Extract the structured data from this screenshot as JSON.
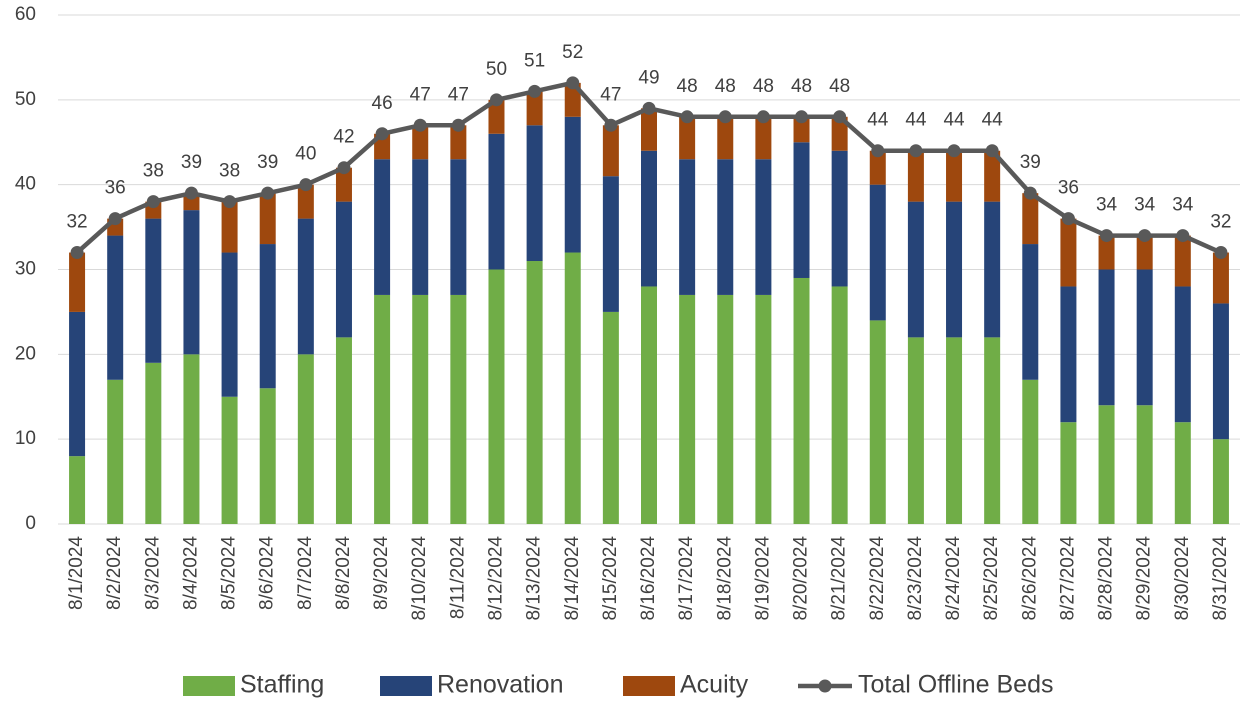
{
  "chart_data": {
    "type": "bar",
    "stacked": true,
    "categories": [
      "8/1/2024",
      "8/2/2024",
      "8/3/2024",
      "8/4/2024",
      "8/5/2024",
      "8/6/2024",
      "8/7/2024",
      "8/8/2024",
      "8/9/2024",
      "8/10/2024",
      "8/11/2024",
      "8/12/2024",
      "8/13/2024",
      "8/14/2024",
      "8/15/2024",
      "8/16/2024",
      "8/17/2024",
      "8/18/2024",
      "8/19/2024",
      "8/20/2024",
      "8/21/2024",
      "8/22/2024",
      "8/23/2024",
      "8/24/2024",
      "8/25/2024",
      "8/26/2024",
      "8/27/2024",
      "8/28/2024",
      "8/29/2024",
      "8/30/2024",
      "8/31/2024"
    ],
    "series": [
      {
        "name": "Staffing",
        "color": "#70ad47",
        "values": [
          8,
          17,
          19,
          20,
          15,
          16,
          20,
          22,
          27,
          27,
          27,
          30,
          31,
          32,
          25,
          28,
          27,
          27,
          27,
          29,
          28,
          24,
          22,
          22,
          22,
          17,
          12,
          14,
          14,
          12,
          10
        ]
      },
      {
        "name": "Renovation",
        "color": "#264478",
        "values": [
          17,
          17,
          17,
          17,
          17,
          17,
          16,
          16,
          16,
          16,
          16,
          16,
          16,
          16,
          16,
          16,
          16,
          16,
          16,
          16,
          16,
          16,
          16,
          16,
          16,
          16,
          16,
          16,
          16,
          16,
          16
        ]
      },
      {
        "name": "Acuity",
        "color": "#9e480e",
        "values": [
          7,
          2,
          2,
          2,
          6,
          6,
          4,
          4,
          3,
          4,
          4,
          4,
          4,
          4,
          6,
          5,
          5,
          5,
          5,
          3,
          4,
          4,
          6,
          6,
          6,
          6,
          8,
          4,
          4,
          6,
          6
        ]
      },
      {
        "name": "Total Offline Beds",
        "color": "#595959",
        "type": "line",
        "values": [
          32,
          36,
          38,
          39,
          38,
          39,
          40,
          42,
          46,
          47,
          47,
          50,
          51,
          52,
          47,
          49,
          48,
          48,
          48,
          48,
          48,
          44,
          44,
          44,
          44,
          39,
          36,
          34,
          34,
          34,
          32
        ]
      }
    ],
    "ylim": [
      0,
      60
    ],
    "yticks": [
      0,
      10,
      20,
      30,
      40,
      50,
      60
    ],
    "grid": true,
    "legend": "bottom"
  }
}
